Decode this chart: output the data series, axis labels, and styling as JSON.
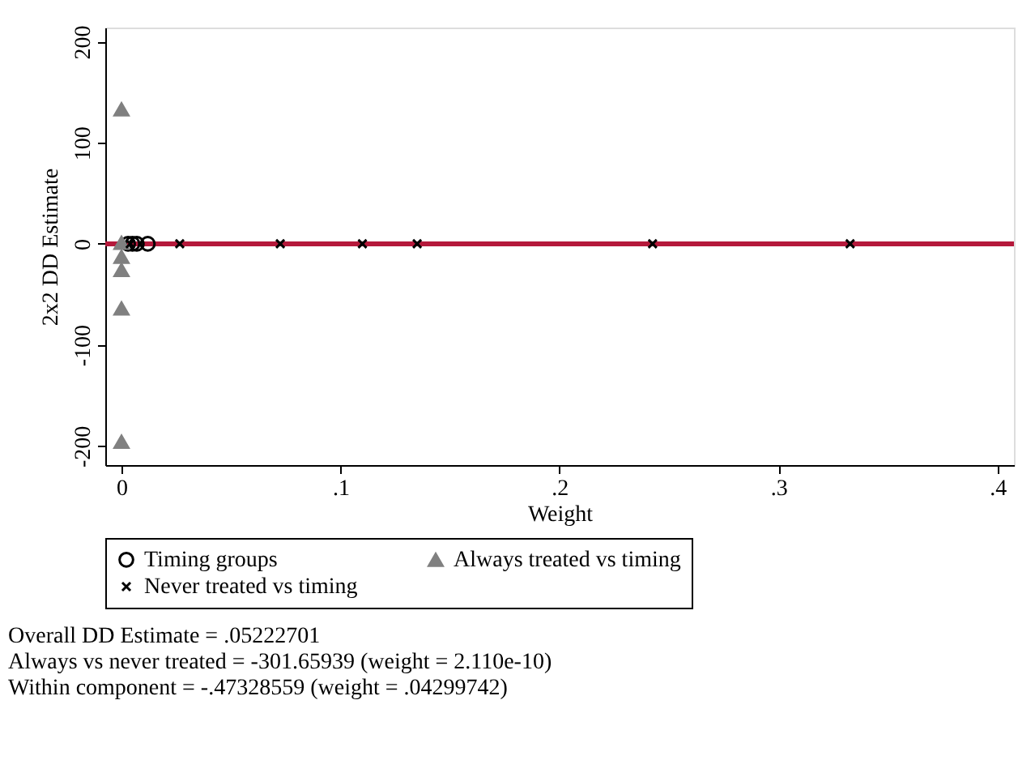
{
  "chart_data": {
    "type": "scatter",
    "xlabel": "Weight",
    "ylabel": "2x2 DD Estimate",
    "xlim": [
      -0.0074,
      0.4075
    ],
    "ylim": [
      -219,
      214
    ],
    "xticks": [
      0,
      {
        "value": 0.1,
        "label": ".1"
      },
      {
        "value": 0.2,
        "label": ".2"
      },
      {
        "value": 0.3,
        "label": ".3"
      },
      {
        "value": 0.4,
        "label": ".4"
      }
    ],
    "yticks": [
      -200,
      -100,
      0,
      100,
      200
    ],
    "grid": false,
    "legend": "bottom",
    "series": [
      {
        "name": "Timing groups",
        "color": "#000000",
        "marker": "circle",
        "x": [
          0.003,
          0.005,
          0.007,
          0.012
        ],
        "values": [
          0,
          0,
          0,
          0
        ]
      },
      {
        "name": "Always treated vs timing",
        "color": "#808080",
        "marker": "triangle",
        "x": [
          0,
          0,
          0,
          0,
          0,
          0
        ],
        "values": [
          133,
          1,
          -13,
          -26,
          -64,
          -196
        ]
      },
      {
        "name": "Never treated vs timing",
        "color": "#000000",
        "marker": "cross",
        "x": [
          0.004,
          0.0266,
          0.0725,
          0.11,
          0.135,
          0.2425,
          0.3327
        ],
        "values": [
          0,
          0,
          0,
          0,
          0,
          0,
          0
        ]
      }
    ],
    "ref_lines": [
      {
        "axis": "y",
        "value": 0,
        "color": "#b5193b"
      }
    ],
    "annotations": [
      "Overall DD Estimate = .05222701",
      "Always vs never treated = -301.65939 (weight = 2.110e-10)",
      "Within component = -.47328559 (weight = .04299742)"
    ]
  }
}
